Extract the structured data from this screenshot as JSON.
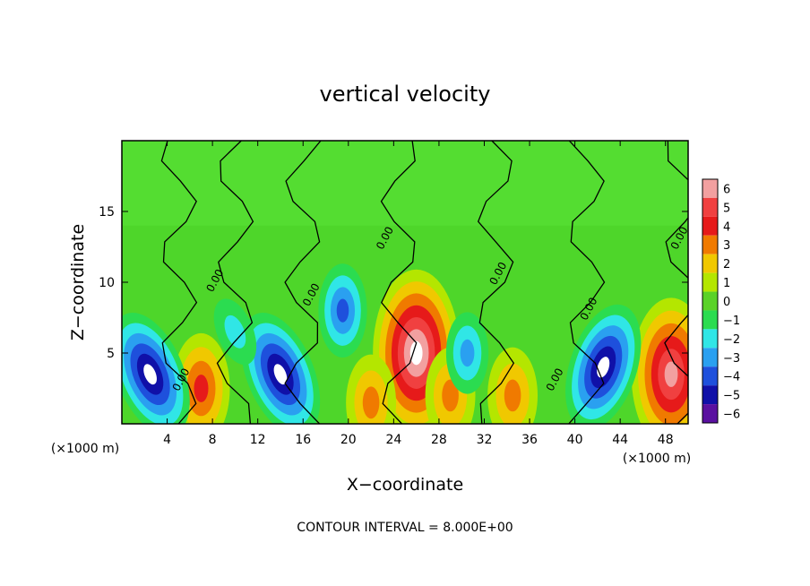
{
  "chart_data": {
    "type": "heatmap",
    "title": "vertical velocity",
    "xlabel": "X−coordinate",
    "ylabel": "Z−coordinate",
    "x_unit_left": "(×1000 m)",
    "x_unit_right": "(×1000 m)",
    "xlim": [
      0,
      50
    ],
    "ylim": [
      0,
      20
    ],
    "x_ticks": [
      4,
      8,
      12,
      16,
      20,
      24,
      28,
      32,
      36,
      40,
      44,
      48
    ],
    "y_ticks": [
      5,
      10,
      15
    ],
    "colorbar": {
      "levels": [
        6,
        5,
        4,
        3,
        2,
        1,
        0,
        -1,
        -2,
        -3,
        -4,
        -5,
        -6
      ],
      "tick_labels": [
        "6",
        "5",
        "4",
        "3",
        "2",
        "1",
        "0",
        "−1",
        "−2",
        "−3",
        "−4",
        "−5",
        "−6"
      ],
      "colors": [
        "#f2a0a0",
        "#f04040",
        "#e61a1a",
        "#f07a00",
        "#f0c800",
        "#b4e600",
        "#5ad228",
        "#2bdc50",
        "#30e6e6",
        "#2aa0f0",
        "#1e50dc",
        "#1010a8",
        "#5a10a0"
      ]
    },
    "contour_label": "0.00",
    "contour_interval_text": "CONTOUR INTERVAL = 8.000E+00",
    "features": [
      {
        "kind": "updraft",
        "x": 26,
        "z": 5,
        "peak": 9
      },
      {
        "kind": "updraft",
        "x": 48.5,
        "z": 3.5,
        "peak": 8
      },
      {
        "kind": "updraft",
        "x": 7,
        "z": 2.5,
        "peak": 5
      },
      {
        "kind": "updraft",
        "x": 22,
        "z": 1.5,
        "peak": 4
      },
      {
        "kind": "updraft",
        "x": 34.5,
        "z": 2,
        "peak": 4
      },
      {
        "kind": "updraft",
        "x": 29,
        "z": 2,
        "peak": 4
      },
      {
        "kind": "downdraft",
        "x": 2.5,
        "z": 3.5,
        "peak": -8
      },
      {
        "kind": "downdraft",
        "x": 14,
        "z": 3.5,
        "peak": -8
      },
      {
        "kind": "downdraft",
        "x": 19.5,
        "z": 8,
        "peak": -5
      },
      {
        "kind": "downdraft",
        "x": 42.5,
        "z": 4,
        "peak": -8
      },
      {
        "kind": "downdraft",
        "x": 30.5,
        "z": 5,
        "peak": -4
      },
      {
        "kind": "downdraft",
        "x": 10,
        "z": 6.5,
        "peak": -3
      }
    ]
  }
}
